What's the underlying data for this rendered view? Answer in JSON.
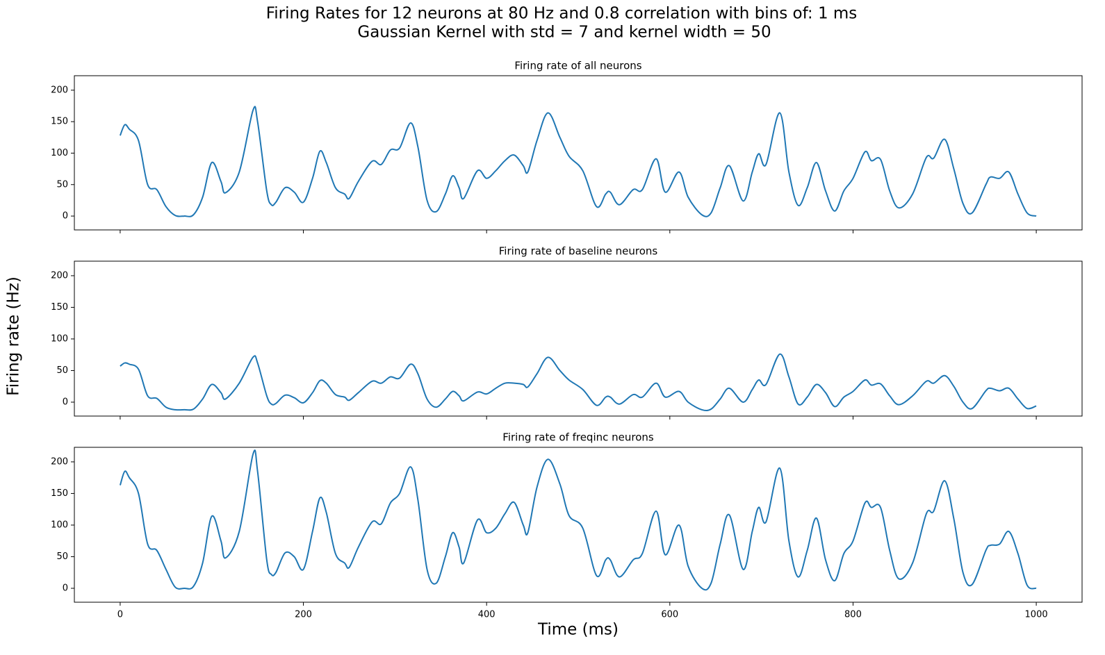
{
  "title": "Firing Rates for 12 neurons at 80 Hz and 0.8 correlation with bins of: 1 ms",
  "subtitle": "Gaussian Kernel with std = 7 and kernel width = 50",
  "x_label": "Time (ms)",
  "y_label": "Firing rate (Hz)",
  "chart_data": [
    {
      "type": "line",
      "title": "Firing rate of all neurons",
      "xlim": [
        -50,
        1050
      ],
      "ylim": [
        -22,
        223
      ],
      "xticks": [
        0,
        200,
        400,
        600,
        800,
        1000
      ],
      "yticks": [
        0,
        50,
        100,
        150,
        200
      ],
      "x": [
        0,
        5,
        10,
        20,
        30,
        40,
        50,
        60,
        70,
        80,
        90,
        100,
        110,
        115,
        130,
        145,
        150,
        160,
        165,
        170,
        180,
        190,
        200,
        210,
        218,
        225,
        235,
        245,
        250,
        260,
        275,
        285,
        295,
        305,
        317,
        325,
        335,
        345,
        355,
        363,
        370,
        375,
        390,
        400,
        410,
        420,
        430,
        440,
        445,
        455,
        467,
        480,
        490,
        505,
        520,
        530,
        535,
        545,
        560,
        570,
        585,
        595,
        610,
        620,
        635,
        645,
        655,
        665,
        680,
        690,
        697,
        705,
        720,
        730,
        740,
        750,
        760,
        770,
        780,
        790,
        800,
        813,
        820,
        830,
        840,
        850,
        865,
        880,
        888,
        900,
        910,
        920,
        930,
        945,
        950,
        960,
        970,
        980,
        990,
        1000
      ],
      "series": [
        {
          "color": "#1f77b4",
          "values": [
            128,
            145,
            138,
            120,
            50,
            42,
            15,
            1,
            0,
            2,
            30,
            85,
            55,
            37,
            70,
            168,
            150,
            40,
            18,
            22,
            45,
            38,
            22,
            60,
            103,
            85,
            45,
            35,
            28,
            55,
            87,
            82,
            105,
            108,
            148,
            110,
            25,
            7,
            35,
            64,
            45,
            28,
            72,
            60,
            72,
            88,
            97,
            80,
            70,
            120,
            164,
            125,
            95,
            72,
            15,
            35,
            38,
            18,
            42,
            42,
            91,
            38,
            70,
            30,
            2,
            5,
            45,
            80,
            24,
            70,
            99,
            82,
            164,
            70,
            17,
            45,
            85,
            40,
            8,
            40,
            60,
            102,
            88,
            90,
            40,
            13,
            35,
            93,
            92,
            122,
            75,
            20,
            5,
            50,
            62,
            60,
            70,
            35,
            5,
            0
          ]
        }
      ]
    },
    {
      "type": "line",
      "title": "Firing rate of baseline neurons",
      "xlim": [
        -50,
        1050
      ],
      "ylim": [
        -22,
        223
      ],
      "xticks": [
        0,
        200,
        400,
        600,
        800,
        1000
      ],
      "yticks": [
        0,
        50,
        100,
        150,
        200
      ],
      "x": [
        0,
        5,
        10,
        20,
        30,
        40,
        50,
        60,
        70,
        80,
        90,
        100,
        110,
        115,
        130,
        145,
        150,
        160,
        165,
        170,
        180,
        190,
        200,
        210,
        218,
        225,
        235,
        245,
        250,
        260,
        275,
        285,
        295,
        305,
        317,
        325,
        335,
        345,
        355,
        363,
        370,
        375,
        390,
        400,
        410,
        420,
        430,
        440,
        445,
        455,
        467,
        480,
        490,
        505,
        520,
        530,
        535,
        545,
        560,
        570,
        585,
        595,
        610,
        620,
        635,
        645,
        655,
        665,
        680,
        690,
        697,
        705,
        720,
        730,
        740,
        750,
        760,
        770,
        780,
        790,
        800,
        813,
        820,
        830,
        840,
        850,
        865,
        880,
        888,
        900,
        910,
        920,
        930,
        945,
        950,
        960,
        970,
        980,
        990,
        1000
      ],
      "series": [
        {
          "color": "#1f77b4",
          "values": [
            57,
            62,
            60,
            52,
            10,
            6,
            -8,
            -12,
            -12,
            -11,
            5,
            28,
            15,
            5,
            30,
            71,
            62,
            10,
            -3,
            -2,
            11,
            7,
            -1,
            15,
            34,
            30,
            12,
            8,
            3,
            15,
            33,
            30,
            40,
            38,
            60,
            45,
            5,
            -8,
            5,
            17,
            10,
            2,
            16,
            13,
            22,
            30,
            30,
            28,
            24,
            45,
            71,
            50,
            35,
            20,
            -5,
            8,
            8,
            -3,
            12,
            8,
            30,
            8,
            17,
            0,
            -12,
            -11,
            5,
            22,
            0,
            20,
            35,
            28,
            76,
            40,
            -3,
            8,
            28,
            15,
            -7,
            8,
            17,
            35,
            27,
            29,
            10,
            -4,
            10,
            33,
            30,
            42,
            25,
            0,
            -10,
            18,
            22,
            18,
            22,
            5,
            -10,
            -6
          ]
        }
      ]
    },
    {
      "type": "line",
      "title": "Firing rate of freqinc neurons",
      "xlim": [
        -50,
        1050
      ],
      "ylim": [
        -22,
        223
      ],
      "xticks": [
        0,
        200,
        400,
        600,
        800,
        1000
      ],
      "yticks": [
        0,
        50,
        100,
        150,
        200
      ],
      "x": [
        0,
        5,
        10,
        20,
        30,
        40,
        50,
        60,
        70,
        80,
        90,
        100,
        110,
        115,
        130,
        145,
        150,
        160,
        165,
        170,
        180,
        190,
        200,
        210,
        218,
        225,
        235,
        245,
        250,
        260,
        275,
        285,
        295,
        305,
        317,
        325,
        335,
        345,
        355,
        363,
        370,
        375,
        390,
        400,
        410,
        420,
        430,
        440,
        445,
        455,
        467,
        480,
        490,
        505,
        520,
        530,
        535,
        545,
        560,
        570,
        585,
        595,
        610,
        620,
        635,
        645,
        655,
        665,
        680,
        690,
        697,
        705,
        720,
        730,
        740,
        750,
        760,
        770,
        780,
        790,
        800,
        813,
        820,
        830,
        840,
        850,
        865,
        880,
        888,
        900,
        910,
        920,
        930,
        945,
        950,
        960,
        970,
        980,
        990,
        1000
      ],
      "series": [
        {
          "color": "#1f77b4",
          "values": [
            163,
            185,
            175,
            150,
            70,
            60,
            30,
            2,
            0,
            3,
            40,
            114,
            75,
            48,
            90,
            212,
            185,
            45,
            22,
            25,
            56,
            50,
            30,
            90,
            143,
            120,
            55,
            40,
            33,
            65,
            105,
            102,
            135,
            150,
            192,
            140,
            30,
            8,
            50,
            88,
            65,
            40,
            108,
            88,
            95,
            118,
            136,
            100,
            88,
            160,
            204,
            165,
            115,
            95,
            20,
            45,
            45,
            18,
            45,
            55,
            122,
            53,
            100,
            35,
            0,
            8,
            70,
            116,
            30,
            90,
            128,
            105,
            190,
            75,
            18,
            60,
            111,
            45,
            12,
            55,
            75,
            135,
            128,
            128,
            60,
            15,
            40,
            118,
            122,
            170,
            110,
            25,
            6,
            60,
            68,
            70,
            90,
            55,
            5,
            0
          ]
        }
      ]
    }
  ]
}
